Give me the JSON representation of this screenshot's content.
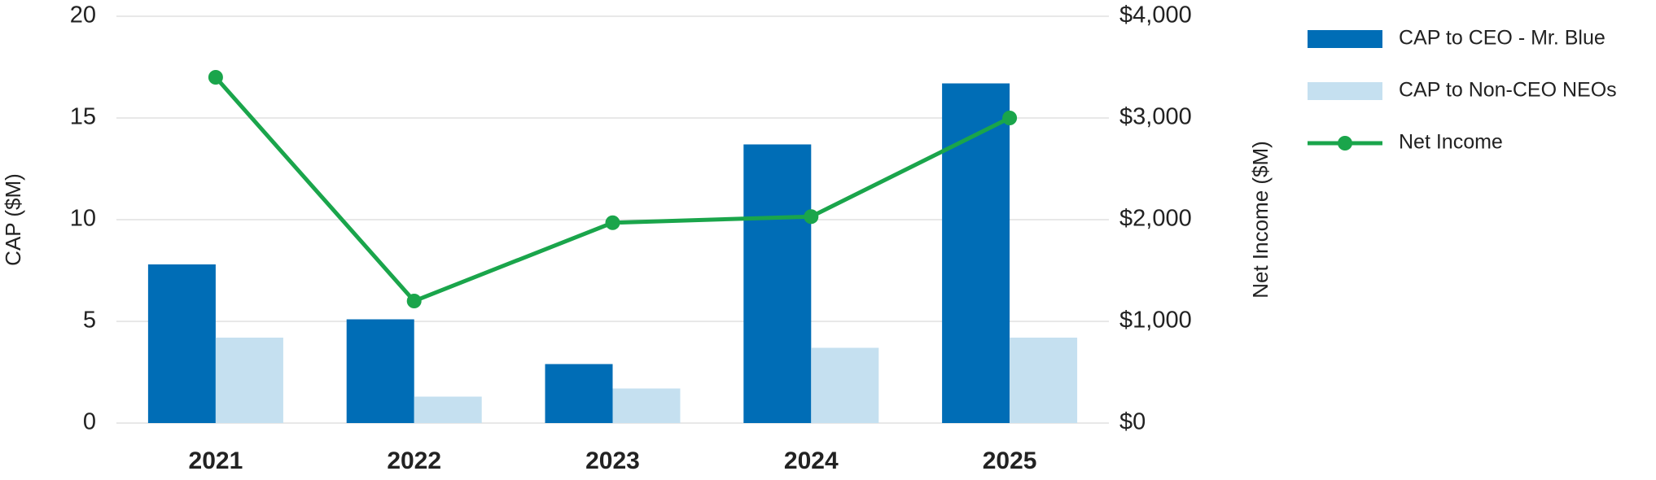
{
  "chart_data": {
    "type": "bar",
    "y_label": "CAP ($M)",
    "y2_label": "Net Income ($M)",
    "categories": [
      "2021",
      "2022",
      "2023",
      "2024",
      "2025"
    ],
    "series": [
      {
        "name": "CAP to CEO - Mr. Blue",
        "type": "bar",
        "color": "#006db6",
        "values": [
          7.8,
          5.1,
          2.9,
          13.7,
          16.7
        ]
      },
      {
        "name": "CAP to Non-CEO NEOs",
        "type": "bar",
        "color": "#c5e0f0",
        "values": [
          4.2,
          1.3,
          1.7,
          3.7,
          4.2
        ]
      },
      {
        "name": "Net Income",
        "type": "line",
        "axis": "y2",
        "color": "#1aa54b",
        "values": [
          3400,
          1200,
          1970,
          2030,
          3000
        ]
      }
    ],
    "ylim": [
      0,
      20
    ],
    "yticks": [
      0,
      5,
      10,
      15,
      20
    ],
    "y2lim": [
      0,
      4000
    ],
    "y2ticks": [
      {
        "value": 0,
        "label": "$0"
      },
      {
        "value": 1000,
        "label": "$1,000"
      },
      {
        "value": 2000,
        "label": "$2,000"
      },
      {
        "value": 3000,
        "label": "$3,000"
      },
      {
        "value": 4000,
        "label": "$4,000"
      }
    ],
    "grid": true,
    "legend": "right"
  }
}
